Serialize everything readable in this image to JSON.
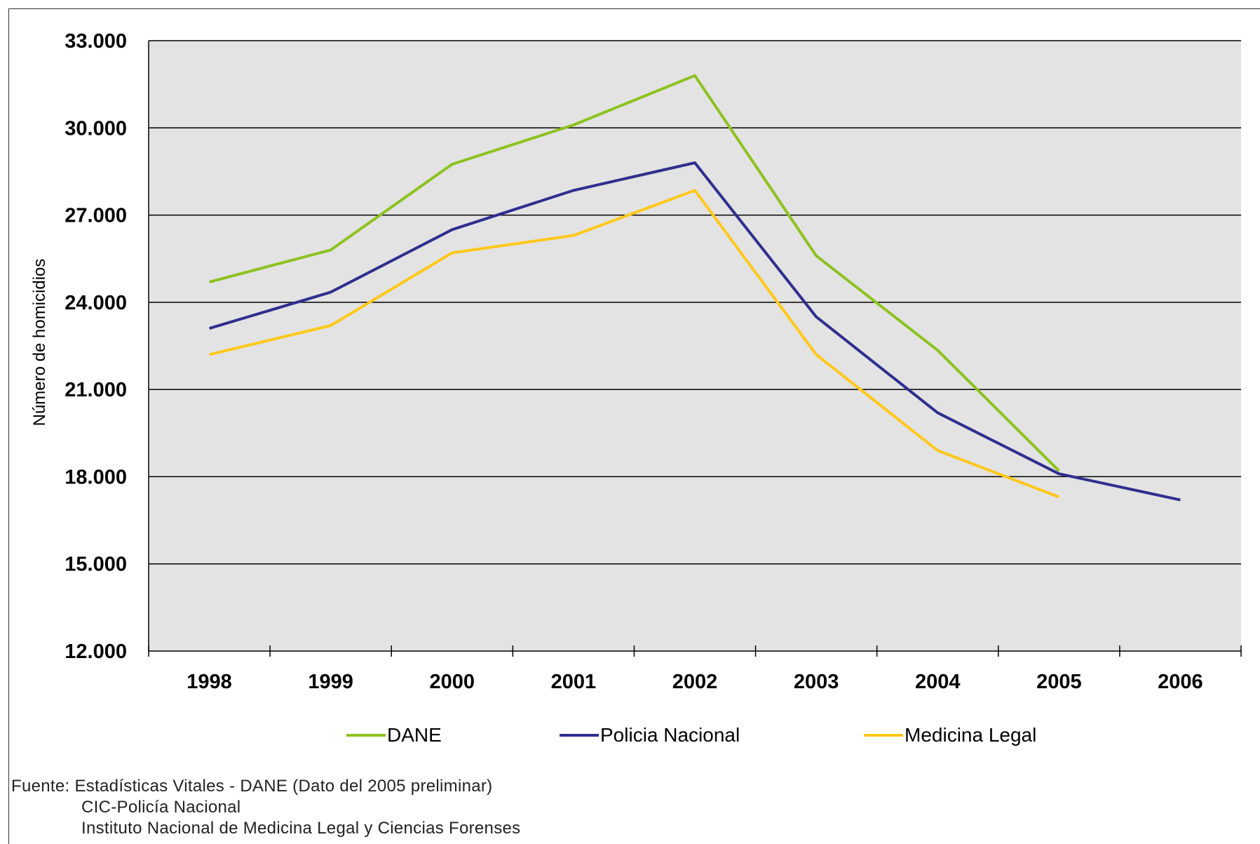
{
  "colors": {
    "plot_bg": "#e3e3e3",
    "grid": "#000000",
    "dane": "#8dc21f",
    "policia": "#2f2f8f",
    "medicina": "#ffc819"
  },
  "chart_data": {
    "type": "line",
    "title": "",
    "xlabel": "",
    "ylabel": "Número de homicidios",
    "categories": [
      "1998",
      "1999",
      "2000",
      "2001",
      "2002",
      "2003",
      "2004",
      "2005",
      "2006"
    ],
    "ylim": [
      12000,
      33000
    ],
    "yticks": [
      12000,
      15000,
      18000,
      21000,
      24000,
      27000,
      30000,
      33000
    ],
    "ytick_labels": [
      "12.000",
      "15.000",
      "18.000",
      "21.000",
      "24.000",
      "27.000",
      "30.000",
      "33.000"
    ],
    "grid": true,
    "legend_position": "bottom",
    "series": [
      {
        "name": "DANE",
        "color": "#8dc21f",
        "values": [
          24700,
          25800,
          28750,
          30100,
          31800,
          25600,
          22350,
          18200,
          null
        ]
      },
      {
        "name": "Policia Nacional",
        "color": "#2f2f8f",
        "values": [
          23100,
          24350,
          26500,
          27850,
          28800,
          23500,
          20200,
          18100,
          17200
        ]
      },
      {
        "name": "Medicina Legal",
        "color": "#ffc819",
        "values": [
          22200,
          23200,
          25700,
          26300,
          27850,
          22200,
          18900,
          17300,
          null
        ]
      }
    ]
  },
  "legend": {
    "items": [
      "DANE",
      "Policia Nacional",
      "Medicina Legal"
    ]
  },
  "source": {
    "line1": "Fuente: Estadísticas Vitales - DANE (Dato del 2005 preliminar)",
    "line2": "CIC-Policía Nacional",
    "line3": "Instituto Nacional de Medicina Legal y Ciencias Forenses"
  }
}
